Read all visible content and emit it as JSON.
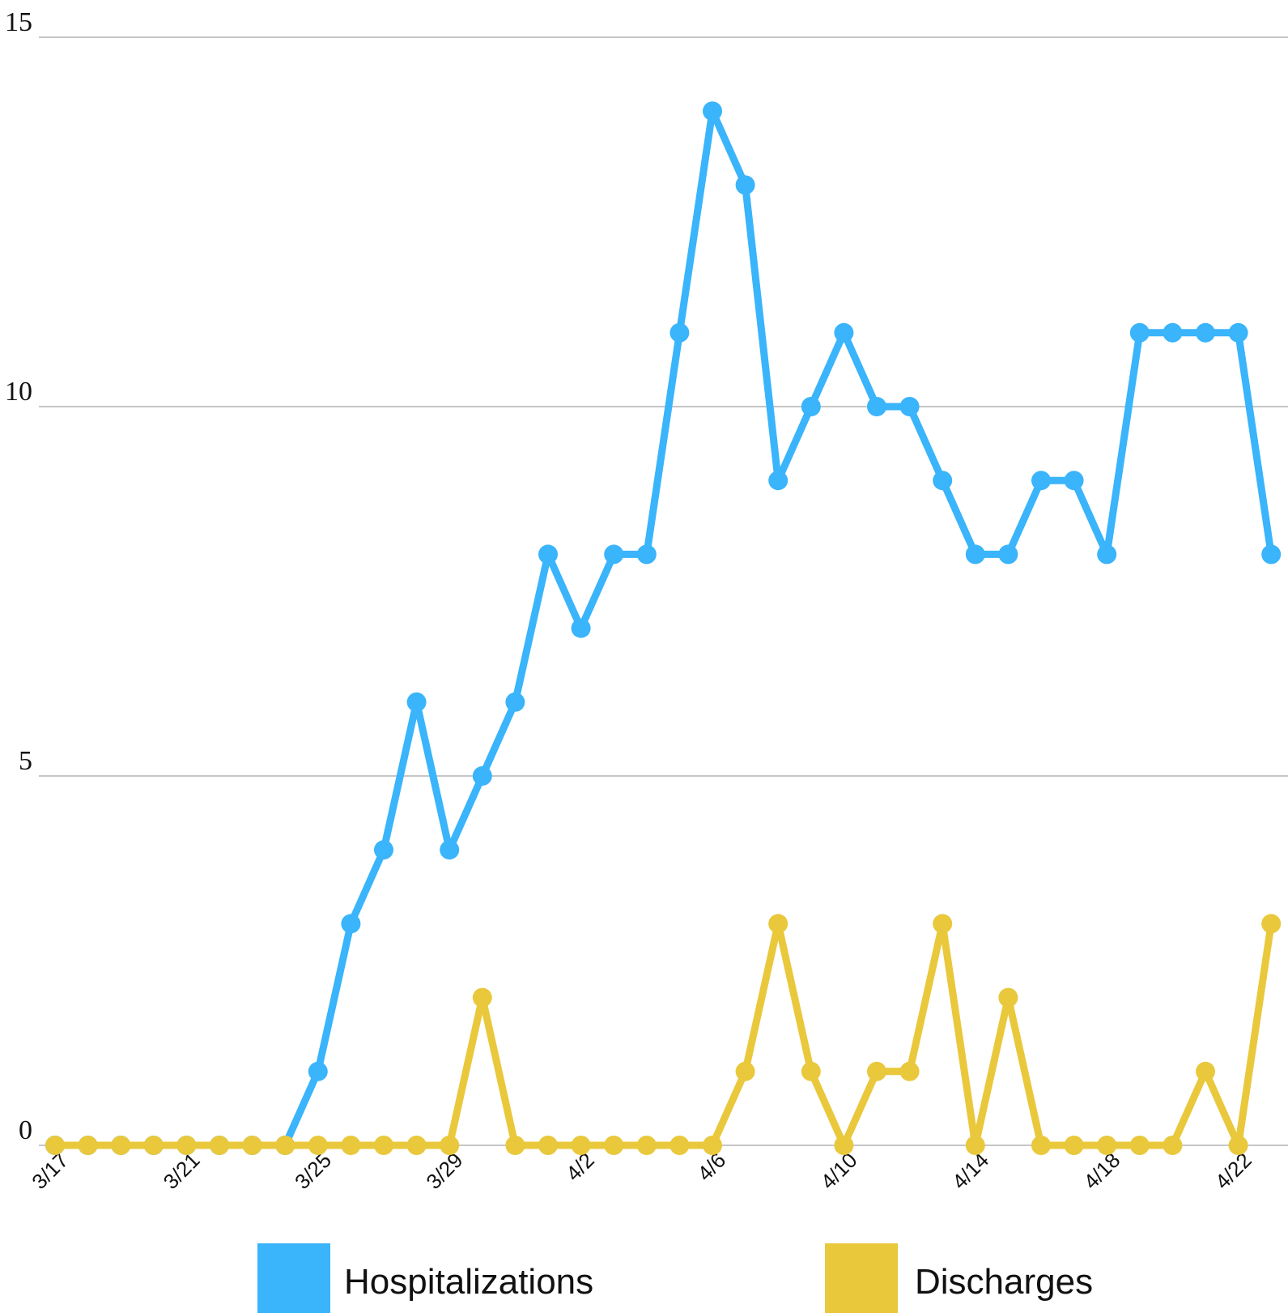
{
  "chart_data": {
    "type": "line",
    "title": "",
    "xlabel": "",
    "ylabel": "",
    "ylim": [
      0,
      15
    ],
    "yticks": [
      0,
      5,
      10,
      15
    ],
    "grid": true,
    "legend_position": "bottom",
    "x": [
      "3/17",
      "3/18",
      "3/19",
      "3/20",
      "3/21",
      "3/22",
      "3/23",
      "3/24",
      "3/25",
      "3/26",
      "3/27",
      "3/28",
      "3/29",
      "3/30",
      "3/31",
      "4/1",
      "4/2",
      "4/3",
      "4/4",
      "4/5",
      "4/6",
      "4/7",
      "4/8",
      "4/9",
      "4/10",
      "4/11",
      "4/12",
      "4/13",
      "4/14",
      "4/15",
      "4/16",
      "4/17",
      "4/18",
      "4/19",
      "4/20",
      "4/21",
      "4/22",
      "4/23"
    ],
    "xtick_labels": [
      "3/17",
      "3/21",
      "3/25",
      "3/29",
      "4/2",
      "4/6",
      "4/10",
      "4/14",
      "4/18",
      "4/22"
    ],
    "series": [
      {
        "name": "Hospitalizations",
        "color": "#3ab4fb",
        "values": [
          0,
          0,
          0,
          0,
          0,
          0,
          0,
          0,
          1,
          3,
          4,
          6,
          4,
          5,
          6,
          8,
          7,
          8,
          8,
          11,
          14,
          13,
          9,
          10,
          11,
          10,
          10,
          9,
          8,
          8,
          9,
          9,
          8,
          11,
          11,
          11,
          11,
          8
        ]
      },
      {
        "name": "Discharges",
        "color": "#e9c83c",
        "values": [
          0,
          0,
          0,
          0,
          0,
          0,
          0,
          0,
          0,
          0,
          0,
          0,
          0,
          2,
          0,
          0,
          0,
          0,
          0,
          0,
          0,
          1,
          3,
          1,
          0,
          1,
          1,
          3,
          0,
          2,
          0,
          0,
          0,
          0,
          0,
          1,
          0,
          3
        ]
      }
    ]
  }
}
